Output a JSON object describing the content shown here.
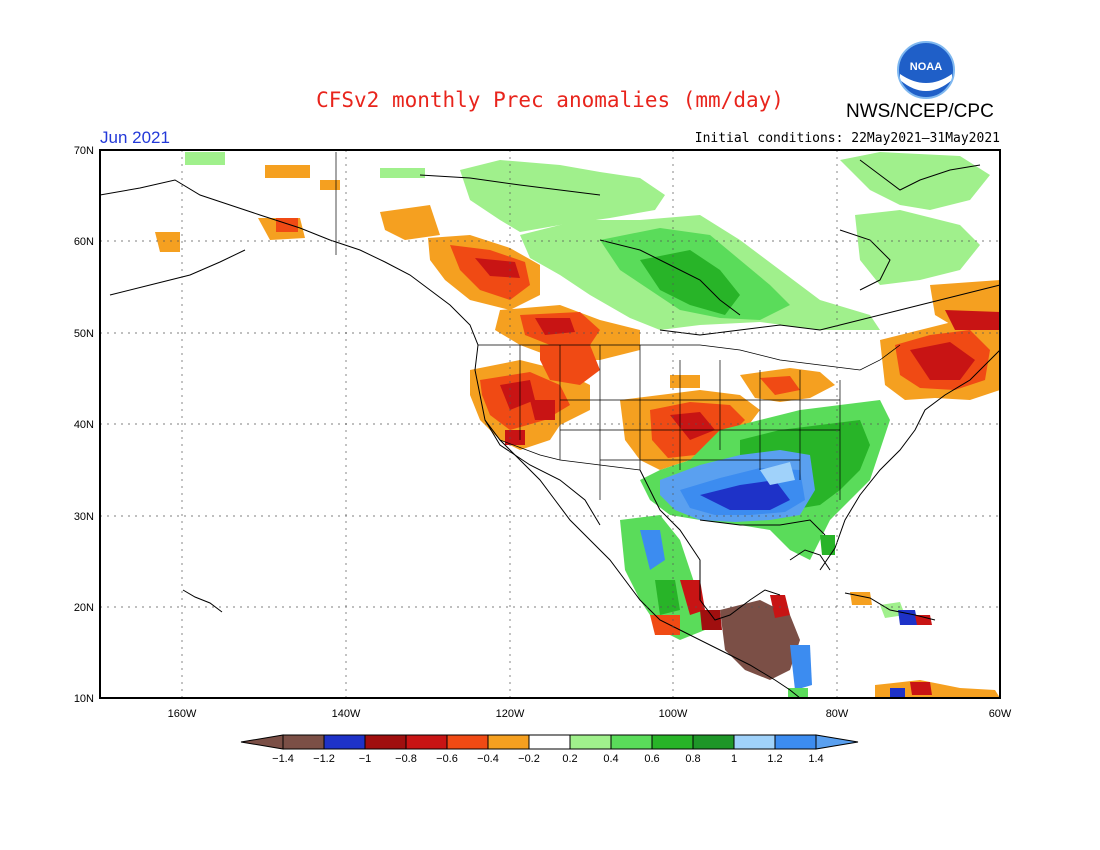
{
  "header": {
    "title": "CFSv2 monthly Prec anomalies (mm/day)",
    "organization": "NWS/NCEP/CPC",
    "period": "Jun 2021",
    "initial_conditions": "Initial conditions: 22May2021–31May2021",
    "logo_text": "NOAA"
  },
  "map": {
    "lat_labels": [
      "70N",
      "60N",
      "50N",
      "40N",
      "30N",
      "20N",
      "10N"
    ],
    "lon_labels": [
      "160W",
      "140W",
      "120W",
      "100W",
      "80W",
      "60W"
    ]
  },
  "legend": {
    "tick_labels": [
      "−1.4",
      "−1.2",
      "−1",
      "−0.8",
      "−0.6",
      "−0.4",
      "−0.2",
      "0.2",
      "0.4",
      "0.6",
      "0.8",
      "1",
      "1.2",
      "1.4"
    ],
    "colors": [
      "#7b4f46",
      "#1e32c8",
      "#a00f0f",
      "#c81414",
      "#f04a14",
      "#f5a020",
      "#ffffff",
      "#a0f08c",
      "#5adc5a",
      "#28b428",
      "#1e9628",
      "#a0d2fa",
      "#3c8cf0",
      "#5aa0f0"
    ]
  }
}
